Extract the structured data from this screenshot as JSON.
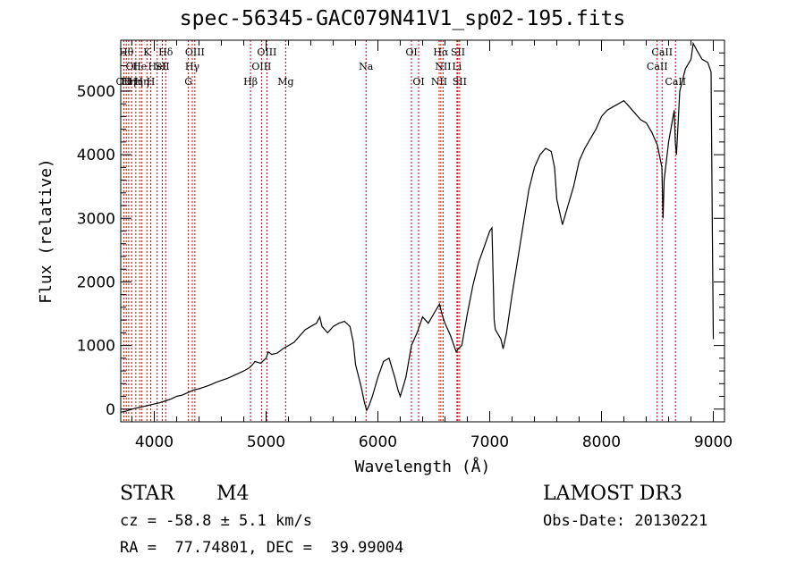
{
  "chart_data": {
    "type": "line",
    "title": "spec-56345-GAC079N41V1_sp02-195.fits",
    "xlabel": "Wavelength (Å)",
    "ylabel": "Flux (relative)",
    "xlim": [
      3700,
      9100
    ],
    "ylim": [
      -200,
      5800
    ],
    "xticks": [
      "4000",
      "5000",
      "6000",
      "7000",
      "8000",
      "9000"
    ],
    "yticks": [
      "0",
      "1000",
      "2000",
      "3000",
      "4000",
      "5000"
    ],
    "series": [
      {
        "name": "flux",
        "x": [
          3700,
          3750,
          3800,
          3850,
          3900,
          3950,
          4000,
          4050,
          4100,
          4150,
          4200,
          4250,
          4300,
          4350,
          4400,
          4450,
          4500,
          4550,
          4600,
          4650,
          4700,
          4750,
          4800,
          4850,
          4880,
          4900,
          4950,
          5000,
          5020,
          5050,
          5100,
          5150,
          5200,
          5250,
          5300,
          5350,
          5400,
          5450,
          5480,
          5500,
          5550,
          5600,
          5650,
          5700,
          5720,
          5750,
          5780,
          5800,
          5850,
          5880,
          5900,
          5920,
          5950,
          6000,
          6050,
          6100,
          6150,
          6180,
          6200,
          6250,
          6300,
          6350,
          6400,
          6450,
          6500,
          6550,
          6580,
          6600,
          6650,
          6700,
          6720,
          6750,
          6800,
          6850,
          6900,
          6950,
          7000,
          7020,
          7040,
          7050,
          7100,
          7120,
          7150,
          7200,
          7250,
          7300,
          7350,
          7400,
          7450,
          7500,
          7550,
          7580,
          7600,
          7650,
          7700,
          7750,
          7800,
          7850,
          7900,
          7950,
          8000,
          8050,
          8100,
          8150,
          8200,
          8250,
          8300,
          8350,
          8400,
          8450,
          8500,
          8540,
          8550,
          8560,
          8600,
          8650,
          8660,
          8670,
          8700,
          8750,
          8800,
          8820,
          8850,
          8900,
          8950,
          8980,
          8990,
          9000
        ],
        "values": [
          -50,
          -30,
          0,
          20,
          40,
          60,
          80,
          100,
          130,
          160,
          200,
          220,
          260,
          300,
          320,
          350,
          380,
          420,
          450,
          480,
          520,
          560,
          600,
          650,
          700,
          750,
          720,
          800,
          900,
          860,
          880,
          950,
          1000,
          1050,
          1150,
          1250,
          1300,
          1350,
          1450,
          1300,
          1200,
          1300,
          1350,
          1380,
          1350,
          1300,
          1050,
          700,
          350,
          100,
          -20,
          50,
          200,
          500,
          750,
          800,
          500,
          300,
          200,
          500,
          1000,
          1200,
          1450,
          1350,
          1500,
          1650,
          1450,
          1350,
          1150,
          900,
          950,
          1000,
          1500,
          1950,
          2300,
          2550,
          2800,
          2850,
          1400,
          1250,
          1100,
          950,
          1200,
          1800,
          2350,
          2900,
          3450,
          3800,
          4000,
          4100,
          4050,
          3800,
          3300,
          2900,
          3200,
          3500,
          3900,
          4100,
          4250,
          4400,
          4600,
          4700,
          4750,
          4800,
          4850,
          4750,
          4650,
          4550,
          4500,
          4350,
          4150,
          3800,
          3000,
          3600,
          4200,
          4700,
          4200,
          4000,
          5000,
          5350,
          5500,
          5750,
          5650,
          5500,
          5450,
          5300,
          3000,
          1100
        ]
      }
    ],
    "spectral_lines": [
      {
        "x": 3727,
        "label": "OII",
        "row": 3
      },
      {
        "x": 3750,
        "label": "Hθ",
        "row": 1
      },
      {
        "x": 3771,
        "label": "Hη",
        "row": 3
      },
      {
        "x": 3798,
        "label": "OI",
        "row": 2
      },
      {
        "x": 3835,
        "label": "Hη",
        "row": 3
      },
      {
        "x": 3869,
        "label": "He",
        "row": 2
      },
      {
        "x": 3889,
        "label": "Hη",
        "row": 3
      },
      {
        "x": 3934,
        "label": "K",
        "row": 1
      },
      {
        "x": 3968,
        "label": "H",
        "row": 3
      },
      {
        "x": 4026,
        "label": "HeI",
        "row": 2
      },
      {
        "x": 4072,
        "label": "SII",
        "row": 2
      },
      {
        "x": 4102,
        "label": "Hδ",
        "row": 1
      },
      {
        "x": 4305,
        "label": "G",
        "row": 3
      },
      {
        "x": 4340,
        "label": "Hγ",
        "row": 2
      },
      {
        "x": 4363,
        "label": "OIII",
        "row": 1
      },
      {
        "x": 4861,
        "label": "Hβ",
        "row": 3
      },
      {
        "x": 4959,
        "label": "OIII",
        "row": 2
      },
      {
        "x": 5007,
        "label": "OIII",
        "row": 1
      },
      {
        "x": 5175,
        "label": "Mg",
        "row": 3
      },
      {
        "x": 5894,
        "label": "Na",
        "row": 2
      },
      {
        "x": 6300,
        "label": "OI",
        "row": 1
      },
      {
        "x": 6364,
        "label": "OI",
        "row": 3
      },
      {
        "x": 6548,
        "label": "NII",
        "row": 3
      },
      {
        "x": 6563,
        "label": "Hα",
        "row": 1
      },
      {
        "x": 6583,
        "label": "NII",
        "row": 2
      },
      {
        "x": 6707,
        "label": "Li",
        "row": 2
      },
      {
        "x": 6716,
        "label": "SII",
        "row": 1
      },
      {
        "x": 6731,
        "label": "SII",
        "row": 3
      },
      {
        "x": 8498,
        "label": "CaII",
        "row": 2
      },
      {
        "x": 8542,
        "label": "CaII",
        "row": 1
      },
      {
        "x": 8662,
        "label": "CaII",
        "row": 3
      }
    ]
  },
  "info": {
    "class_label": "STAR",
    "subclass": "M4",
    "survey": "LAMOST DR3",
    "cz": "cz = -58.8 ± 5.1 km/s",
    "obs_date": "Obs-Date: 20130221",
    "coords": "RA =  77.74801, DEC =  39.99004"
  },
  "colors": {
    "line": "#000000",
    "marker": "#cc0000",
    "background": "#ffffff"
  }
}
